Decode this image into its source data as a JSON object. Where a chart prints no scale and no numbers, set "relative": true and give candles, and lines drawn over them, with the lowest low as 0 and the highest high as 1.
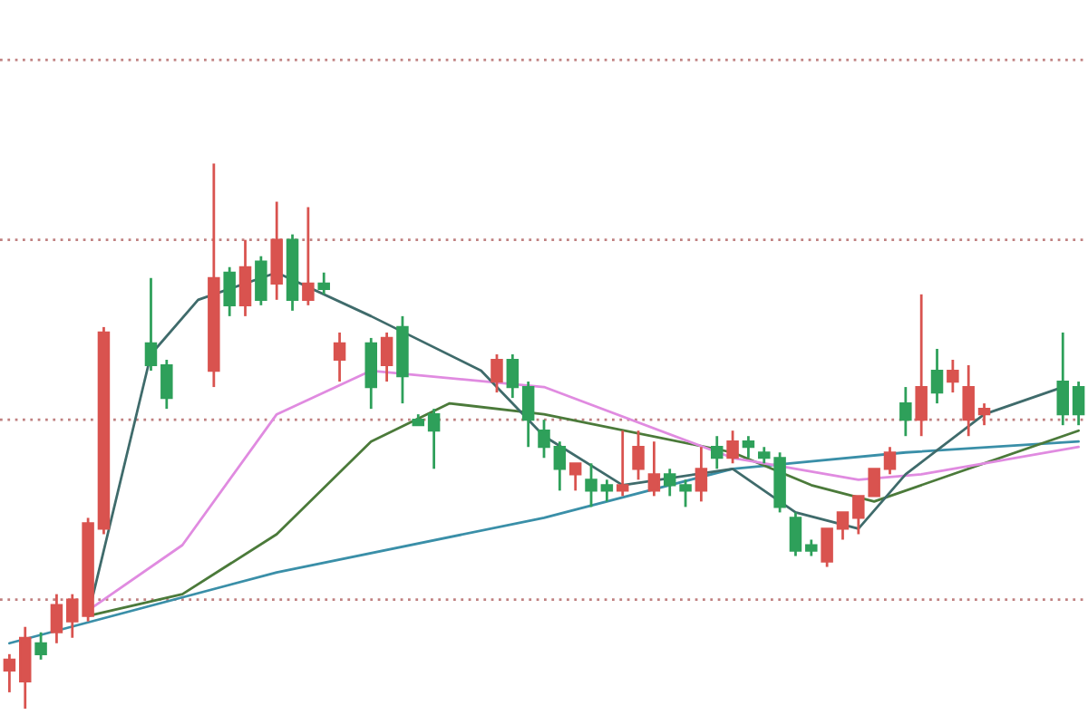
{
  "chart_data": {
    "type": "candlestick",
    "relative": true,
    "ref_lines": [
      {
        "axis": "y",
        "value": 1.19,
        "color": "#c08080",
        "line_style": "dotted"
      },
      {
        "axis": "y",
        "value": 0.86,
        "color": "#c08080",
        "line_style": "dotted"
      },
      {
        "axis": "y",
        "value": 0.53,
        "color": "#c08080",
        "line_style": "dotted"
      },
      {
        "axis": "y",
        "value": 0.2,
        "color": "#c08080",
        "line_style": "dotted"
      }
    ],
    "categories": [
      null,
      null,
      null,
      null,
      null,
      null,
      null,
      null,
      null,
      null,
      null,
      null,
      null,
      null,
      null,
      null,
      null,
      null,
      null,
      null,
      null,
      null,
      null,
      null,
      null,
      null,
      null,
      null,
      null,
      null,
      null,
      null,
      null,
      null,
      null,
      null,
      null,
      null,
      null,
      null,
      null,
      null,
      null,
      null,
      null,
      null,
      null,
      null,
      null,
      null,
      null,
      null,
      null,
      null,
      null,
      null,
      null,
      null,
      null,
      null,
      null,
      null,
      null,
      null,
      null,
      null,
      null,
      null,
      null
    ],
    "ohlc": [
      [
        0.07,
        0.1,
        0.03,
        0.09
      ],
      [
        0.05,
        0.15,
        0.0,
        0.13
      ],
      [
        0.12,
        0.14,
        0.09,
        0.1
      ],
      [
        0.14,
        0.21,
        0.12,
        0.19
      ],
      [
        0.16,
        0.21,
        0.13,
        0.2
      ],
      [
        0.17,
        0.35,
        0.16,
        0.34
      ],
      [
        0.33,
        0.7,
        0.32,
        0.69
      ],
      null,
      null,
      [
        0.67,
        0.79,
        0.62,
        0.63
      ],
      [
        0.63,
        0.64,
        0.55,
        0.57
      ],
      null,
      null,
      [
        0.62,
        1.0,
        0.59,
        0.79
      ],
      [
        0.8,
        0.81,
        0.72,
        0.74
      ],
      [
        0.74,
        0.86,
        0.72,
        0.81
      ],
      [
        0.82,
        0.83,
        0.74,
        0.75
      ],
      [
        0.78,
        0.93,
        0.75,
        0.86
      ],
      [
        0.86,
        0.87,
        0.73,
        0.75
      ],
      [
        0.75,
        0.92,
        0.74,
        0.78
      ],
      [
        0.78,
        0.8,
        0.76,
        0.77
      ],
      [
        0.64,
        0.69,
        0.6,
        0.67
      ],
      null,
      [
        0.67,
        0.68,
        0.55,
        0.59
      ],
      [
        0.63,
        0.69,
        0.6,
        0.68
      ],
      [
        0.7,
        0.72,
        0.56,
        0.61
      ],
      [
        0.53,
        0.54,
        0.52,
        0.52
      ],
      [
        0.54,
        0.55,
        0.44,
        0.51
      ],
      null,
      null,
      null,
      [
        0.6,
        0.65,
        0.58,
        0.64
      ],
      [
        0.64,
        0.65,
        0.57,
        0.59
      ],
      [
        0.59,
        0.6,
        0.48,
        0.53
      ],
      [
        0.51,
        0.53,
        0.46,
        0.48
      ],
      [
        0.48,
        0.49,
        0.4,
        0.44
      ],
      [
        0.43,
        0.45,
        0.4,
        0.45
      ],
      [
        0.42,
        0.45,
        0.37,
        0.4
      ],
      [
        0.41,
        0.42,
        0.38,
        0.4
      ],
      [
        0.4,
        0.51,
        0.39,
        0.41
      ],
      [
        0.44,
        0.51,
        0.42,
        0.48
      ],
      [
        0.4,
        0.49,
        0.39,
        0.43
      ],
      [
        0.43,
        0.44,
        0.39,
        0.41
      ],
      [
        0.41,
        0.42,
        0.37,
        0.4
      ],
      [
        0.4,
        0.48,
        0.38,
        0.44
      ],
      [
        0.48,
        0.5,
        0.44,
        0.46
      ],
      [
        0.46,
        0.51,
        0.45,
        0.49
      ],
      [
        0.49,
        0.5,
        0.46,
        0.48
      ],
      [
        0.47,
        0.48,
        0.45,
        0.46
      ],
      [
        0.46,
        0.47,
        0.36,
        0.37
      ],
      [
        0.35,
        0.36,
        0.28,
        0.29
      ],
      [
        0.3,
        0.31,
        0.28,
        0.29
      ],
      [
        0.27,
        0.33,
        0.26,
        0.33
      ],
      [
        0.33,
        0.36,
        0.31,
        0.36
      ],
      [
        0.35,
        0.39,
        0.32,
        0.39
      ],
      [
        0.39,
        0.44,
        0.39,
        0.44
      ],
      [
        0.44,
        0.48,
        0.43,
        0.47
      ],
      [
        0.56,
        0.59,
        0.5,
        0.53
      ],
      [
        0.53,
        0.76,
        0.5,
        0.59
      ],
      [
        0.62,
        0.66,
        0.56,
        0.58
      ],
      [
        0.6,
        0.64,
        0.58,
        0.62
      ],
      [
        0.53,
        0.63,
        0.5,
        0.59
      ],
      [
        0.54,
        0.56,
        0.52,
        0.55
      ],
      null,
      null,
      null,
      null,
      [
        0.6,
        0.69,
        0.52,
        0.54
      ],
      [
        0.59,
        0.6,
        0.52,
        0.54
      ]
    ],
    "colors": [
      "#d9534f",
      "#d9534f",
      "#2ea05a",
      "#d9534f",
      "#d9534f",
      "#d9534f",
      "#d9534f",
      null,
      null,
      "#2ea05a",
      "#2ea05a",
      null,
      null,
      "#d9534f",
      "#2ea05a",
      "#d9534f",
      "#2ea05a",
      "#d9534f",
      "#2ea05a",
      "#d9534f",
      "#2ea05a",
      "#d9534f",
      null,
      "#2ea05a",
      "#d9534f",
      "#2ea05a",
      "#2ea05a",
      "#2ea05a",
      null,
      null,
      null,
      "#d9534f",
      "#2ea05a",
      "#2ea05a",
      "#2ea05a",
      "#2ea05a",
      "#d9534f",
      "#2ea05a",
      "#2ea05a",
      "#d9534f",
      "#d9534f",
      "#d9534f",
      "#2ea05a",
      "#2ea05a",
      "#d9534f",
      "#2ea05a",
      "#d9534f",
      "#2ea05a",
      "#2ea05a",
      "#2ea05a",
      "#2ea05a",
      "#2ea05a",
      "#d9534f",
      "#d9534f",
      "#d9534f",
      "#d9534f",
      "#d9534f",
      "#2ea05a",
      "#d9534f",
      "#2ea05a",
      "#d9534f",
      "#d9534f",
      "#d9534f",
      null,
      null,
      null,
      null,
      "#2ea05a",
      "#2ea05a"
    ],
    "series": [
      {
        "type": "line",
        "color": "#3a8fa8",
        "values": [
          0.12,
          null,
          null,
          null,
          null,
          null,
          null,
          null,
          null,
          null,
          null,
          null,
          null,
          null,
          null,
          null,
          null,
          0.25,
          null,
          null,
          null,
          null,
          null,
          null,
          null,
          null,
          null,
          null,
          null,
          null,
          null,
          null,
          null,
          null,
          0.35,
          null,
          null,
          null,
          null,
          null,
          null,
          null,
          null,
          null,
          null,
          null,
          0.44,
          null,
          null,
          null,
          null,
          null,
          null,
          null,
          null,
          null,
          null,
          0.47,
          null,
          null,
          null,
          null,
          null,
          null,
          null,
          null,
          null,
          null,
          0.49
        ]
      },
      {
        "type": "line",
        "color": "#4b7a3a",
        "values": [
          null,
          null,
          null,
          null,
          null,
          0.17,
          null,
          null,
          null,
          null,
          null,
          0.21,
          null,
          null,
          null,
          null,
          null,
          0.32,
          null,
          null,
          null,
          null,
          null,
          0.49,
          null,
          null,
          null,
          null,
          0.56,
          null,
          null,
          null,
          null,
          null,
          0.54,
          null,
          null,
          null,
          null,
          null,
          null,
          null,
          null,
          null,
          null,
          null,
          0.47,
          null,
          null,
          null,
          null,
          0.41,
          null,
          null,
          null,
          0.38,
          null,
          null,
          null,
          null,
          0.43,
          null,
          null,
          null,
          null,
          null,
          null,
          null,
          0.51
        ]
      },
      {
        "type": "line",
        "color": "#e08be0",
        "values": [
          null,
          null,
          null,
          null,
          null,
          0.18,
          null,
          null,
          null,
          null,
          null,
          0.3,
          null,
          null,
          null,
          null,
          null,
          0.54,
          null,
          null,
          null,
          null,
          null,
          0.62,
          null,
          null,
          null,
          null,
          null,
          null,
          null,
          null,
          null,
          null,
          0.59,
          null,
          null,
          null,
          null,
          null,
          null,
          null,
          null,
          null,
          null,
          null,
          0.46,
          null,
          null,
          null,
          null,
          null,
          null,
          null,
          0.42,
          null,
          null,
          null,
          0.43,
          null,
          null,
          null,
          0.45,
          null,
          null,
          null,
          null,
          null,
          0.48
        ]
      },
      {
        "type": "line",
        "color": "#3f6b6b",
        "values": [
          null,
          null,
          null,
          null,
          null,
          0.17,
          null,
          null,
          null,
          0.65,
          null,
          null,
          0.75,
          null,
          null,
          null,
          null,
          0.8,
          null,
          null,
          null,
          null,
          null,
          0.72,
          null,
          null,
          null,
          null,
          null,
          null,
          0.62,
          null,
          null,
          null,
          0.5,
          null,
          null,
          null,
          null,
          0.41,
          null,
          null,
          null,
          null,
          null,
          null,
          0.44,
          null,
          null,
          null,
          0.36,
          null,
          null,
          null,
          0.33,
          null,
          null,
          0.43,
          null,
          null,
          null,
          null,
          0.54,
          null,
          null,
          null,
          null,
          0.59,
          null
        ]
      }
    ]
  }
}
